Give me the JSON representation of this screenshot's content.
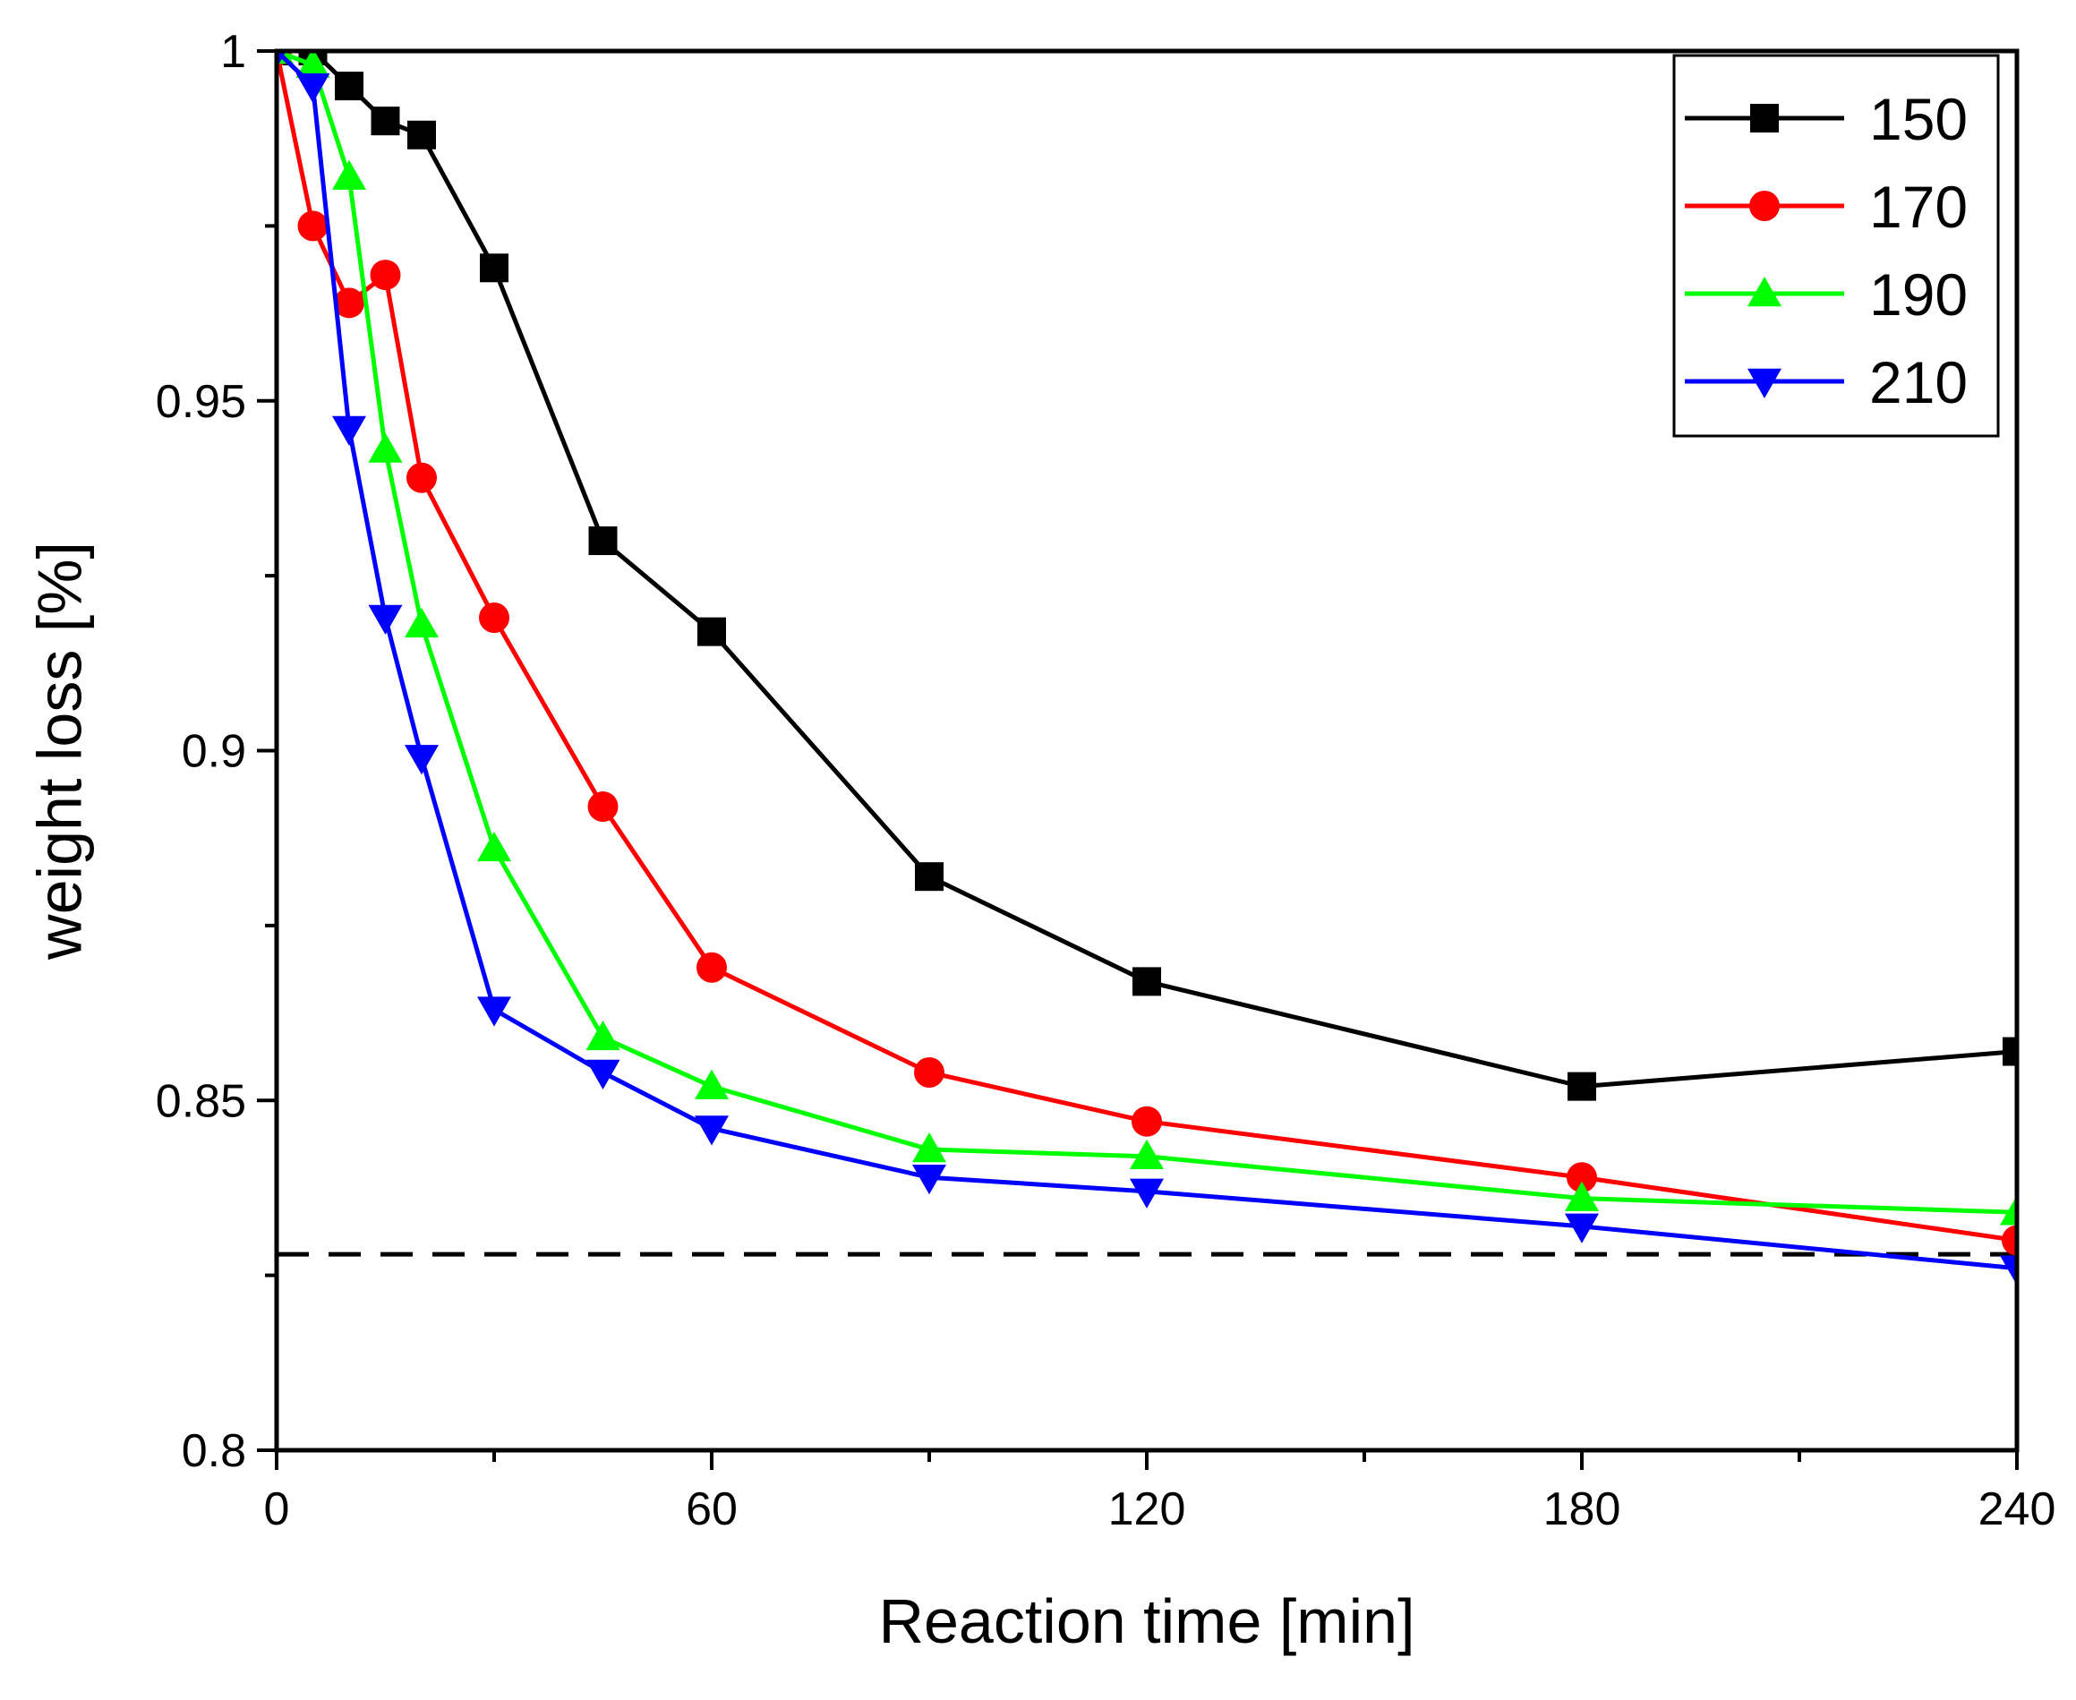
{
  "chart_data": {
    "type": "line",
    "xlabel": "Reaction time [min]",
    "ylabel": "weight loss [%]",
    "xlim": [
      0,
      240
    ],
    "ylim": [
      0.8,
      1.0
    ],
    "x_ticks": [
      0,
      60,
      120,
      180,
      240
    ],
    "x_tick_labels": [
      "0",
      "60",
      "120",
      "180",
      "240"
    ],
    "x_minor_ticks": [
      30,
      90,
      150,
      210
    ],
    "y_ticks": [
      0.8,
      0.85,
      0.9,
      0.95,
      1.0
    ],
    "y_tick_labels": [
      "0.8",
      "0.85",
      "0.9",
      "0.95",
      "1"
    ],
    "y_minor_ticks": [
      0.825,
      0.875,
      0.925,
      0.975
    ],
    "grid": false,
    "legend_position": "top-right",
    "series": [
      {
        "name": "150",
        "color": "#000000",
        "marker": "square",
        "x": [
          0,
          5,
          10,
          15,
          20,
          30,
          45,
          60,
          90,
          120,
          180,
          240
        ],
        "y": [
          1.0,
          1.0,
          0.995,
          0.99,
          0.988,
          0.969,
          0.93,
          0.917,
          0.882,
          0.867,
          0.852,
          0.857
        ]
      },
      {
        "name": "170",
        "color": "#ff0000",
        "marker": "circle",
        "x": [
          0,
          5,
          10,
          15,
          20,
          30,
          45,
          60,
          90,
          120,
          180,
          240
        ],
        "y": [
          1.0,
          0.975,
          0.964,
          0.968,
          0.939,
          0.919,
          0.892,
          0.869,
          0.854,
          0.847,
          0.839,
          0.83
        ]
      },
      {
        "name": "190",
        "color": "#00ff00",
        "marker": "triangle-up",
        "x": [
          0,
          5,
          10,
          15,
          20,
          30,
          45,
          60,
          90,
          120,
          180,
          240
        ],
        "y": [
          1.0,
          0.998,
          0.982,
          0.943,
          0.918,
          0.886,
          0.859,
          0.852,
          0.843,
          0.842,
          0.836,
          0.834
        ]
      },
      {
        "name": "210",
        "color": "#0000ff",
        "marker": "triangle-down",
        "x": [
          0,
          5,
          10,
          15,
          20,
          30,
          45,
          60,
          90,
          120,
          180,
          240
        ],
        "y": [
          1.0,
          0.995,
          0.946,
          0.919,
          0.899,
          0.863,
          0.854,
          0.846,
          0.839,
          0.837,
          0.832,
          0.826
        ]
      }
    ],
    "reference_line": {
      "y": 0.828,
      "style": "dashed",
      "color": "#000000"
    }
  }
}
